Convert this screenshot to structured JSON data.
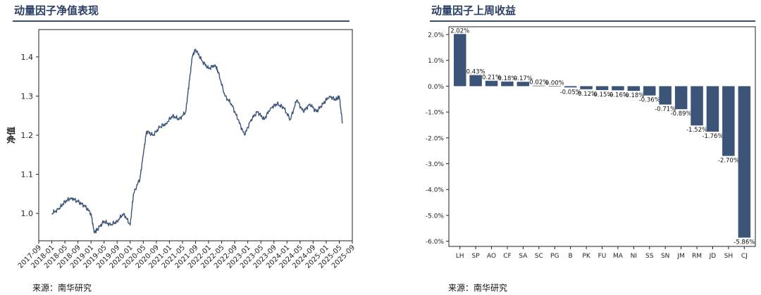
{
  "source_left": "来源：南华研究",
  "source_right": "来源：南华研究",
  "chart_data": [
    {
      "type": "line",
      "title": "动量因子净值表现",
      "ylabel": "净值",
      "xlabel": "",
      "ylim": [
        0.93,
        1.47
      ],
      "yticks": [
        "1.0",
        "1.1",
        "1.2",
        "1.3",
        "1.4"
      ],
      "ytick_values": [
        1.0,
        1.1,
        1.2,
        1.3,
        1.4
      ],
      "xticks": [
        "2017-09",
        "2018-01",
        "2018-05",
        "2018-09",
        "2019-01",
        "2019-05",
        "2019-09",
        "2020-01",
        "2020-05",
        "2020-09",
        "2021-01",
        "2021-05",
        "2021-09",
        "2022-01",
        "2022-05",
        "2022-09",
        "2023-01",
        "2023-05",
        "2023-09",
        "2024-01",
        "2024-05",
        "2024-09",
        "2025-01",
        "2025-05",
        "2025-09"
      ],
      "grid": false,
      "color": "#3b5478",
      "series": [
        {
          "x": [
            "2018-01",
            "2018-03",
            "2018-05",
            "2018-07",
            "2018-09",
            "2018-11",
            "2019-01",
            "2019-02",
            "2019-03",
            "2019-05",
            "2019-07",
            "2019-09",
            "2019-11",
            "2020-01",
            "2020-02",
            "2020-04",
            "2020-05",
            "2020-06",
            "2020-08",
            "2020-10",
            "2020-12",
            "2021-02",
            "2021-04",
            "2021-06",
            "2021-07",
            "2021-08",
            "2021-09",
            "2021-11",
            "2022-01",
            "2022-03",
            "2022-04",
            "2022-06",
            "2022-08",
            "2022-10",
            "2022-12",
            "2023-02",
            "2023-04",
            "2023-06",
            "2023-08",
            "2023-10",
            "2023-12",
            "2024-02",
            "2024-04",
            "2024-06",
            "2024-08",
            "2024-10",
            "2024-12",
            "2025-02",
            "2025-04",
            "2025-05",
            "2025-06"
          ],
          "y": [
            1.0,
            1.01,
            1.03,
            1.04,
            1.03,
            1.02,
            1.0,
            0.95,
            0.96,
            0.98,
            0.97,
            0.98,
            1.0,
            0.97,
            1.05,
            1.09,
            1.15,
            1.21,
            1.2,
            1.22,
            1.23,
            1.25,
            1.24,
            1.26,
            1.33,
            1.4,
            1.42,
            1.39,
            1.37,
            1.38,
            1.36,
            1.3,
            1.28,
            1.24,
            1.2,
            1.24,
            1.26,
            1.24,
            1.27,
            1.28,
            1.27,
            1.24,
            1.29,
            1.26,
            1.28,
            1.26,
            1.28,
            1.3,
            1.29,
            1.3,
            1.23
          ]
        }
      ]
    },
    {
      "type": "bar",
      "title": "动量因子上周收益",
      "xlabel": "",
      "ylabel": "",
      "ylim": [
        -6.2,
        2.3
      ],
      "yticks": [
        "2.0%",
        "1.0%",
        "0.0%",
        "-1.0%",
        "-2.0%",
        "-3.0%",
        "-4.0%",
        "-5.0%",
        "-6.0%"
      ],
      "ytick_values": [
        2,
        1,
        0,
        -1,
        -2,
        -3,
        -4,
        -5,
        -6
      ],
      "grid": false,
      "color": "#3b5478",
      "categories": [
        "LH",
        "SP",
        "AO",
        "CF",
        "SA",
        "SC",
        "PG",
        "B",
        "PK",
        "FU",
        "MA",
        "NI",
        "SS",
        "SN",
        "JM",
        "RM",
        "JD",
        "SH",
        "CJ"
      ],
      "values": [
        2.02,
        0.43,
        0.21,
        0.18,
        0.17,
        0.02,
        0.0,
        -0.05,
        -0.12,
        -0.15,
        -0.16,
        -0.18,
        -0.36,
        -0.71,
        -0.89,
        -1.52,
        -1.76,
        -2.7,
        -5.86
      ],
      "labels": [
        "2.02%",
        "0.43%",
        "0.21%",
        "0.18%",
        "0.17%",
        "0.02%",
        "0.00%",
        "-0.05%",
        "-0.12%",
        "-0.15%",
        "-0.16%",
        "-0.18%",
        "-0.36%",
        "-0.71%",
        "-0.89%",
        "-1.52%",
        "-1.76%",
        "-2.70%",
        "-5.86%"
      ]
    }
  ]
}
